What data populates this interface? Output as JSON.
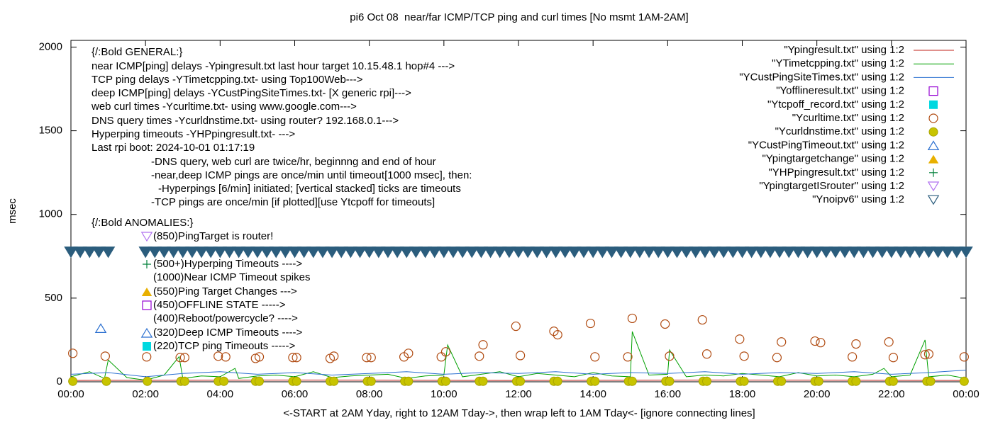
{
  "chart_data": {
    "type": "scatter",
    "title": "pi6 Oct 08  near/far ICMP/TCP ping and curl times [No msmt 1AM-2AM]",
    "x_label": "<-START at 2AM Yday, right to 12AM Tday->, then wrap left to 1AM Tday<- [ignore connecting lines]",
    "y_label": "msec",
    "xlim": [
      0,
      24
    ],
    "ylim": [
      0,
      2040
    ],
    "xticks": [
      {
        "value": 0,
        "label": "00:00"
      },
      {
        "value": 2,
        "label": "02:00"
      },
      {
        "value": 4,
        "label": "04:00"
      },
      {
        "value": 6,
        "label": "06:00"
      },
      {
        "value": 8,
        "label": "08:00"
      },
      {
        "value": 10,
        "label": "10:00"
      },
      {
        "value": 12,
        "label": "12:00"
      },
      {
        "value": 14,
        "label": "14:00"
      },
      {
        "value": 16,
        "label": "16:00"
      },
      {
        "value": 18,
        "label": "18:00"
      },
      {
        "value": 20,
        "label": "20:00"
      },
      {
        "value": 22,
        "label": "22:00"
      },
      {
        "value": 24,
        "label": "00:00"
      }
    ],
    "yticks": [
      0,
      500,
      1000,
      1500,
      2000
    ],
    "legend": "top-right",
    "annotations": [
      "{/:Bold GENERAL:}",
      "near ICMP[ping] delays -Ypingresult.txt last hour target 10.15.48.1 hop#4 --->",
      "TCP ping delays -YTimetcpping.txt- using Top100Web--->",
      "deep ICMP[ping] delays -YCustPingSiteTimes.txt- [X generic rpi]--->",
      "web curl times -Ycurltime.txt- using www.google.com--->",
      "DNS query times -Ycurldnstime.txt- using router? 192.168.0.1--->",
      "Hyperping timeouts -YHPpingresult.txt- --->",
      "Last rpi boot: 2024-10-01 01:17:19",
      "-DNS query, web curl are twice/hr, beginnng and end of hour",
      "-near,deep ICMP pings are once/min until timeout[1000 msec], then:",
      "-Hyperpings [6/min] initiated; [vertical stacked] ticks are timeouts",
      "-TCP pings are once/min [if plotted][use Ytcpoff for timeouts]",
      "{/:Bold ANOMALIES:}",
      "(850)PingTarget is router!",
      "(500+)Hyperping Timeouts ---->",
      "(1000)Near ICMP Timeout spikes",
      "(550)Ping Target Changes --->",
      "(450)OFFLINE STATE ----->",
      "(400)Reboot/powercycle? ---->",
      "(320)Deep ICMP Timeouts ---->",
      "(220)TCP ping Timeouts ----->"
    ],
    "series": [
      {
        "name": "\"Ypingresult.txt\" using 1:2",
        "marker": "line",
        "color": "#c0201a",
        "x": [
          0,
          6,
          12,
          18,
          24
        ],
        "values": [
          8,
          10,
          8,
          10,
          8
        ]
      },
      {
        "name": "\"YTimetcpping.txt\" using 1:2",
        "marker": "line",
        "color": "#00a000",
        "x": [
          0,
          0.5,
          0.9,
          1.0,
          1.5,
          2,
          2.5,
          2.9,
          3,
          3.5,
          4,
          4.4,
          4.5,
          5,
          5.5,
          6,
          6.5,
          7,
          7.5,
          8,
          8.5,
          9,
          9.5,
          10,
          10.1,
          10.5,
          11,
          11.5,
          12,
          12.5,
          13,
          13.5,
          14,
          14.5,
          15,
          15.05,
          15.5,
          16,
          16.05,
          16.5,
          17,
          17.5,
          18,
          18.5,
          19,
          19.5,
          20,
          20.5,
          21,
          21.5,
          21.8,
          22,
          22.5,
          22.9,
          23,
          23.5,
          24
        ],
        "values": [
          30,
          60,
          20,
          130,
          25,
          10,
          40,
          150,
          20,
          35,
          30,
          80,
          20,
          35,
          40,
          30,
          60,
          25,
          35,
          40,
          45,
          20,
          35,
          40,
          220,
          30,
          45,
          60,
          30,
          50,
          40,
          30,
          55,
          35,
          30,
          300,
          40,
          45,
          190,
          30,
          40,
          35,
          50,
          40,
          30,
          55,
          35,
          40,
          30,
          45,
          80,
          30,
          40,
          250,
          30,
          40,
          20
        ]
      },
      {
        "name": "\"YCustPingSiteTimes.txt\" using 1:2",
        "marker": "line",
        "color": "#2a6fd0",
        "x": [
          0,
          1,
          2,
          3,
          4,
          5,
          6,
          7,
          8,
          9,
          10,
          11,
          12,
          13,
          14,
          15,
          16,
          17,
          18,
          19,
          20,
          21,
          22,
          23,
          24
        ],
        "values": [
          45,
          55,
          30,
          50,
          60,
          45,
          55,
          40,
          50,
          60,
          45,
          55,
          50,
          60,
          45,
          55,
          50,
          60,
          45,
          55,
          50,
          60,
          45,
          55,
          70
        ]
      },
      {
        "name": "\"Yofflineresult.txt\" using 1:2",
        "marker": "square-open",
        "color": "#9400d3",
        "x": [],
        "values": []
      },
      {
        "name": "\"Ytcpoff_record.txt\" using 1:2",
        "marker": "square",
        "color": "#00d8e0",
        "x": [],
        "values": []
      },
      {
        "name": "\"Ycurltime.txt\" using 1:2",
        "marker": "circle-open",
        "color": "#b04a10",
        "x": [
          0.05,
          0.92,
          2.03,
          2.93,
          3.05,
          3.95,
          4.15,
          4.95,
          5.05,
          5.95,
          6.05,
          6.95,
          7.05,
          7.93,
          8.05,
          8.93,
          9.05,
          9.93,
          10.05,
          10.95,
          11.05,
          11.93,
          12.05,
          12.95,
          13.05,
          13.93,
          14.05,
          14.93,
          15.05,
          15.93,
          16.05,
          16.93,
          17.05,
          17.93,
          18.05,
          18.93,
          19.05,
          19.95,
          20.1,
          20.95,
          21.05,
          21.93,
          22.05,
          22.9,
          23.0,
          23.95
        ],
        "values": [
          170,
          153,
          149,
          145,
          145,
          153,
          149,
          140,
          149,
          145,
          145,
          140,
          153,
          145,
          145,
          149,
          170,
          149,
          179,
          153,
          221,
          332,
          157,
          302,
          281,
          349,
          149,
          149,
          379,
          345,
          153,
          370,
          166,
          255,
          153,
          145,
          238,
          243,
          234,
          149,
          226,
          238,
          145,
          162,
          166,
          149
        ]
      },
      {
        "name": "\"Ycurldnstime.txt\" using 1:2",
        "marker": "circle",
        "color": "#c8c400",
        "x": [
          0.05,
          0.95,
          2.05,
          2.95,
          3.05,
          3.95,
          4.1,
          4.95,
          5.05,
          5.95,
          6.05,
          6.95,
          7.05,
          7.95,
          8.05,
          8.95,
          9.05,
          9.95,
          10.05,
          10.95,
          11.05,
          11.95,
          12.05,
          12.95,
          13.05,
          13.95,
          14.05,
          14.95,
          15.05,
          15.95,
          16.05,
          16.95,
          17.05,
          17.95,
          18.05,
          18.95,
          19.05,
          19.95,
          20.05,
          20.95,
          21.05,
          21.95,
          22.05,
          22.95,
          23.05,
          23.95
        ],
        "values": [
          3,
          3,
          3,
          3,
          3,
          3,
          3,
          3,
          3,
          3,
          3,
          3,
          3,
          3,
          3,
          3,
          3,
          3,
          3,
          3,
          3,
          3,
          3,
          3,
          3,
          3,
          3,
          3,
          3,
          3,
          3,
          3,
          3,
          3,
          3,
          3,
          3,
          3,
          3,
          3,
          3,
          3,
          3,
          3,
          3,
          3
        ]
      },
      {
        "name": "\"YCustPingTimeout.txt\" using 1:2",
        "marker": "triangle-open",
        "color": "#2a6fd0",
        "x": [
          0.8
        ],
        "values": [
          320
        ]
      },
      {
        "name": "\"Ypingtargetchange\" using 1:2",
        "marker": "triangle",
        "color": "#e8b000",
        "x": [],
        "values": []
      },
      {
        "name": "\"YHPpingresult.txt\" using 1:2",
        "marker": "plus",
        "color": "#00803a",
        "x": [],
        "values": []
      },
      {
        "name": "\"YpingtargetISrouter\" using 1:2",
        "marker": "triangle-down-open",
        "color": "#b070f0",
        "x": [],
        "values": []
      },
      {
        "name": "\"Ynoipv6\" using 1:2",
        "marker": "triangle-down-open",
        "color": "#2b5d7d",
        "x": [
          0,
          0.25,
          0.5,
          0.75,
          1,
          2,
          2.25,
          2.5,
          2.75,
          3,
          3.25,
          3.5,
          3.75,
          4,
          4.25,
          4.5,
          4.75,
          5,
          5.25,
          5.5,
          5.75,
          6,
          6.25,
          6.5,
          6.75,
          7,
          7.25,
          7.5,
          7.75,
          8,
          8.25,
          8.5,
          8.75,
          9,
          9.25,
          9.5,
          9.75,
          10,
          10.25,
          10.5,
          10.75,
          11,
          11.25,
          11.5,
          11.75,
          12,
          12.25,
          12.5,
          12.75,
          13,
          13.25,
          13.5,
          13.75,
          14,
          14.25,
          14.5,
          14.75,
          15,
          15.25,
          15.5,
          15.75,
          16,
          16.25,
          16.5,
          16.75,
          17,
          17.25,
          17.5,
          17.75,
          18,
          18.25,
          18.5,
          18.75,
          19,
          19.25,
          19.5,
          19.75,
          20,
          20.25,
          20.5,
          20.75,
          21,
          21.25,
          21.5,
          21.75,
          22,
          22.25,
          22.5,
          22.75,
          23,
          23.25,
          23.5,
          23.75,
          24
        ],
        "values": [
          775,
          775,
          775,
          775,
          775,
          775,
          775,
          775,
          775,
          775,
          775,
          775,
          775,
          775,
          775,
          775,
          775,
          775,
          775,
          775,
          775,
          775,
          775,
          775,
          775,
          775,
          775,
          775,
          775,
          775,
          775,
          775,
          775,
          775,
          775,
          775,
          775,
          775,
          775,
          775,
          775,
          775,
          775,
          775,
          775,
          775,
          775,
          775,
          775,
          775,
          775,
          775,
          775,
          775,
          775,
          775,
          775,
          775,
          775,
          775,
          775,
          775,
          775,
          775,
          775,
          775,
          775,
          775,
          775,
          775,
          775,
          775,
          775,
          775,
          775,
          775,
          775,
          775,
          775,
          775,
          775,
          775,
          775,
          775,
          775,
          775,
          775,
          775,
          775,
          775,
          775,
          775,
          775,
          775
        ]
      }
    ]
  }
}
